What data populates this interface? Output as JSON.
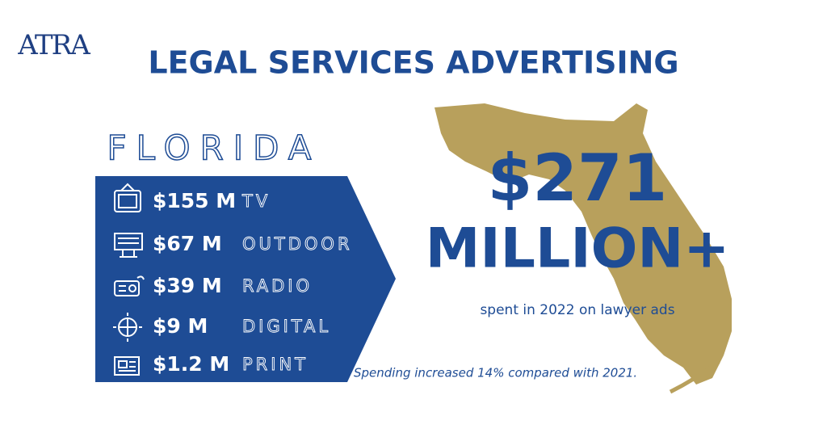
{
  "logo": "ATRA",
  "title": "LEGAL SERVICES ADVERTISING",
  "state": "FLORIDA",
  "items": [
    {
      "amount": "$155 M",
      "label": "TV"
    },
    {
      "amount": "$67 M",
      "label": "OUTDOOR"
    },
    {
      "amount": "$39 M",
      "label": "RADIO"
    },
    {
      "amount": "$9 M",
      "label": "DIGITAL"
    },
    {
      "amount": "$1.2 M",
      "label": "PRINT"
    }
  ],
  "total": "$271",
  "total_unit": "MILLION+",
  "total_caption": "spent in 2022 on lawyer ads",
  "note": "Spending increased 14% compared with 2021."
}
